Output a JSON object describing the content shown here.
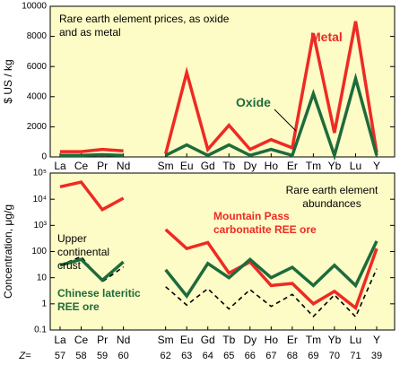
{
  "chart_data": [
    {
      "type": "line",
      "title": "Rare earth element prices, as oxide and as metal",
      "ylabel": "$ US / kg",
      "categories": [
        "La",
        "Ce",
        "Pr",
        "Nd",
        null,
        "Sm",
        "Eu",
        "Gd",
        "Tb",
        "Dy",
        "Ho",
        "Er",
        "Tm",
        "Yb",
        "Lu",
        "Y"
      ],
      "series": [
        {
          "name": "Metal",
          "color": "#ee2a24",
          "values": [
            350,
            350,
            500,
            400,
            null,
            200,
            5600,
            500,
            2100,
            500,
            1150,
            600,
            8200,
            1600,
            9000,
            300
          ]
        },
        {
          "name": "Oxide",
          "color": "#1e6b3c",
          "values": [
            100,
            100,
            150,
            100,
            null,
            100,
            800,
            100,
            800,
            100,
            500,
            100,
            4200,
            100,
            5200,
            100
          ]
        }
      ],
      "ylim": [
        0,
        10000
      ],
      "yticks": [
        0,
        2000,
        4000,
        6000,
        8000,
        10000
      ]
    },
    {
      "type": "line",
      "log_scale": true,
      "title": "Rare earth element abundances",
      "ylabel": "Concentration, μg/g",
      "categories": [
        "La",
        "Ce",
        "Pr",
        "Nd",
        null,
        "Sm",
        "Eu",
        "Gd",
        "Tb",
        "Dy",
        "Ho",
        "Er",
        "Tm",
        "Yb",
        "Lu",
        "Y"
      ],
      "atomic_number_label": "Z=",
      "atomic_numbers": [
        57,
        58,
        59,
        60,
        null,
        62,
        63,
        64,
        65,
        66,
        67,
        68,
        69,
        70,
        71,
        39
      ],
      "series": [
        {
          "name": "Mountain Pass carbonatite REE ore",
          "color": "#ee2a24",
          "values": [
            30000,
            45000,
            4000,
            11000,
            null,
            700,
            130,
            220,
            15,
            40,
            5,
            6,
            1,
            3,
            0.7,
            130
          ]
        },
        {
          "name": "Upper continental crust",
          "color": "#000000",
          "dashed": true,
          "values": [
            30,
            64,
            7,
            26,
            null,
            4.5,
            0.9,
            3.8,
            0.64,
            3.5,
            0.8,
            2.3,
            0.33,
            2.2,
            0.32,
            22
          ]
        },
        {
          "name": "Chinese lateritic REE ore",
          "color": "#1e6b3c",
          "values": [
            30,
            50,
            8,
            40,
            null,
            20,
            2,
            35,
            10,
            50,
            10,
            25,
            5,
            30,
            5,
            250
          ]
        }
      ],
      "ylim": [
        0.1,
        100000
      ],
      "yticks": [
        0.1,
        1,
        10,
        100,
        {
          "value": 1000,
          "label": "10³"
        },
        {
          "value": 10000,
          "label": "10⁴"
        },
        {
          "value": 100000,
          "label": "10⁵"
        }
      ]
    }
  ]
}
